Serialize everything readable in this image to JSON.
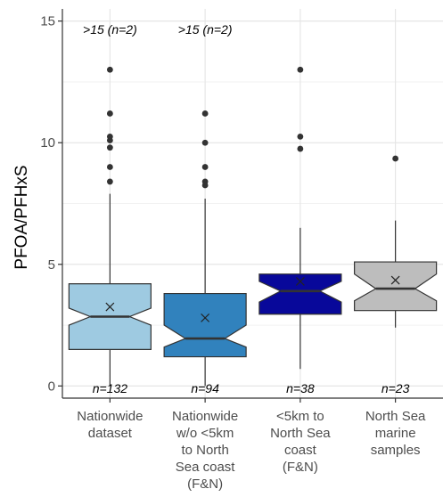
{
  "chart_data": {
    "type": "box",
    "ylabel": "PFOA/PFHxS",
    "ylim": [
      -0.5,
      15.5
    ],
    "yticks": [
      0,
      5,
      10,
      15
    ],
    "ytick_labels": [
      "0",
      "5",
      "10",
      "15"
    ],
    "grid": true,
    "notched": true,
    "groups": [
      {
        "label_lines": [
          "Nationwide",
          "dataset"
        ],
        "color": "#9ecae1",
        "whisker_low": 0.0,
        "q1": 1.5,
        "median": 2.85,
        "q3": 4.2,
        "whisker_high": 7.9,
        "notch_low": 2.5,
        "notch_high": 3.2,
        "mean": 3.25,
        "outliers": [
          8.4,
          9.0,
          9.8,
          10.1,
          10.25,
          11.2,
          13.0
        ],
        "n_label": "n=132",
        "top_annotation": ">15 (n=2)"
      },
      {
        "label_lines": [
          "Nationwide",
          "w/o <5km",
          "to North",
          "Sea coast",
          "(F&N)"
        ],
        "color": "#3182bd",
        "whisker_low": 0.0,
        "q1": 1.2,
        "median": 1.95,
        "q3": 3.8,
        "whisker_high": 7.7,
        "notch_low": 1.6,
        "notch_high": 2.5,
        "mean": 2.8,
        "outliers": [
          8.25,
          8.4,
          9.0,
          10.0,
          11.2
        ],
        "n_label": "n=94",
        "top_annotation": ">15 (n=2)"
      },
      {
        "label_lines": [
          "<5km to",
          "North Sea",
          "coast",
          "(F&N)"
        ],
        "color": "#08089a",
        "whisker_low": 0.7,
        "q1": 2.95,
        "median": 3.9,
        "q3": 4.6,
        "whisker_high": 6.5,
        "notch_low": 3.45,
        "notch_high": 4.3,
        "mean": 4.3,
        "outliers": [
          9.75,
          10.25,
          13.0
        ],
        "n_label": "n=38",
        "top_annotation": ""
      },
      {
        "label_lines": [
          "North Sea",
          "marine",
          "samples"
        ],
        "color": "#bdbdbd",
        "whisker_low": 2.4,
        "q1": 3.1,
        "median": 4.0,
        "q3": 5.1,
        "whisker_high": 6.8,
        "notch_low": 3.5,
        "notch_high": 4.6,
        "mean": 4.35,
        "outliers": [
          9.35
        ],
        "n_label": "n=23",
        "top_annotation": ""
      }
    ]
  }
}
